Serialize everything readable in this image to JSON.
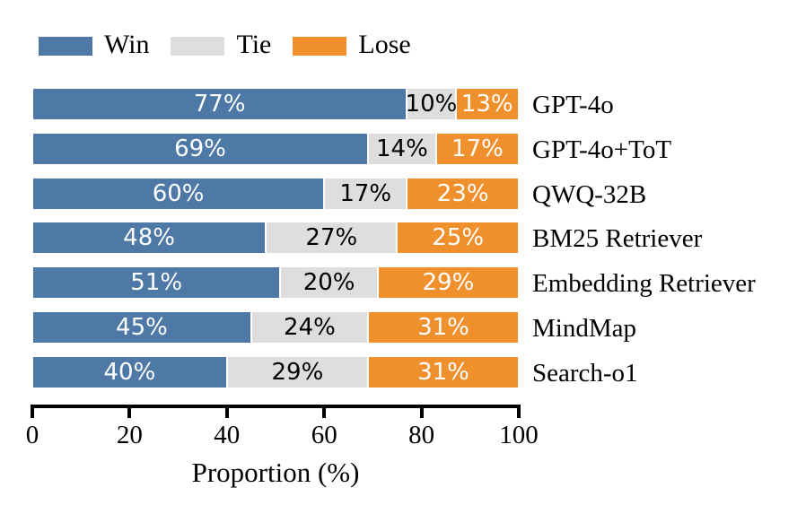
{
  "figure": {
    "background": "#ffffff",
    "text_color": "#000000"
  },
  "legend": {
    "items": [
      {
        "label": "Win",
        "color": "#4e79a7"
      },
      {
        "label": "Tie",
        "color": "#dedede"
      },
      {
        "label": "Lose",
        "color": "#f0902c"
      }
    ]
  },
  "chart_data": {
    "type": "bar",
    "orientation": "horizontal",
    "stacked": true,
    "categories": [
      "GPT-4o",
      "GPT-4o+ToT",
      "QWQ-32B",
      "BM25 Retriever",
      "Embedding Retriever",
      "MindMap",
      "Search-o1"
    ],
    "series": [
      {
        "name": "Win",
        "color": "#4e79a7",
        "label_color": "#ffffff",
        "values": [
          77,
          69,
          60,
          48,
          51,
          45,
          40
        ]
      },
      {
        "name": "Tie",
        "color": "#dedede",
        "label_color": "#000000",
        "values": [
          10,
          14,
          17,
          27,
          20,
          24,
          29
        ]
      },
      {
        "name": "Lose",
        "color": "#f0902c",
        "label_color": "#ffffff",
        "values": [
          13,
          17,
          23,
          25,
          29,
          31,
          31
        ]
      }
    ],
    "bar_labels_format": "{v}%",
    "title": "",
    "xlabel": "Proportion (%)",
    "ylabel": "",
    "xlim": [
      0,
      100
    ],
    "x_ticks": [
      0,
      20,
      40,
      60,
      80,
      100
    ],
    "grid": false,
    "legend_position": "top-left"
  }
}
